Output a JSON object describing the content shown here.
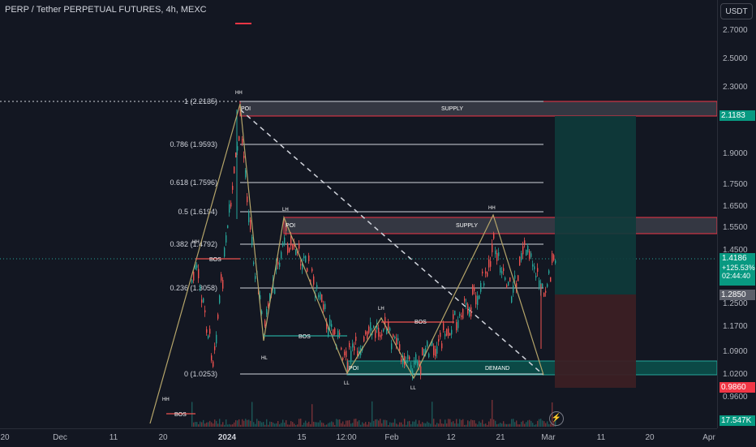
{
  "header": {
    "title": "PERP / Tether PERPETUAL FUTURES, 4h, MEXC"
  },
  "right_axis": {
    "currency": "USDT",
    "ticks": [
      "2.7000",
      "2.5000",
      "2.3000",
      "1.9000",
      "1.7500",
      "1.6500",
      "1.5500",
      "1.4500",
      "1.2500",
      "1.1700",
      "1.0900",
      "1.0200",
      "0.9600"
    ],
    "price_labels": {
      "target": "2.1183",
      "current": "1.4186",
      "change": "+125.53%",
      "countdown": "02:44:40",
      "entry": "1.2850",
      "stop": "0.9860",
      "volume": "17.547K"
    }
  },
  "bottom_axis": {
    "labels": [
      "20",
      "Dec",
      "11",
      "20",
      "2024",
      "15",
      "12:00",
      "Feb",
      "12",
      "21",
      "Mar",
      "11",
      "20",
      "Apr"
    ]
  },
  "fib_levels": [
    "1 (2.2135)",
    "0.786 (1.9593)",
    "0.618 (1.7596)",
    "0.5 (1.6194)",
    "0.382 (1.4792)",
    "0.236 (1.3058)",
    "0 (1.0253)"
  ],
  "zones": {
    "supply": "SUPPLY",
    "demand": "DEMAND",
    "poi": "POI"
  },
  "structure_labels": {
    "hh": "HH",
    "lh": "LH",
    "hl": "HL",
    "ll": "LL",
    "bos": "BOS"
  },
  "colors": {
    "background": "#131722",
    "up": "#26a69a",
    "down": "#ef5350",
    "supply_border": "#f23645",
    "demand_fill": "#0b4f4a",
    "target_label": "#089981",
    "stop_label": "#f23645",
    "fib_line": "#d1d4dc",
    "zigzag": "#b5a56a"
  },
  "icons": {
    "lightning": "lightning-icon"
  }
}
